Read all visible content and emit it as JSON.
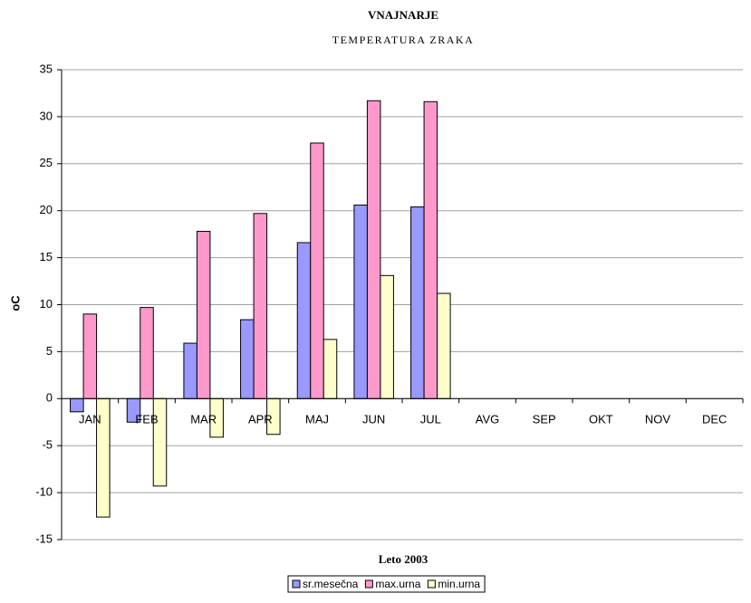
{
  "chart_data": {
    "type": "bar",
    "title": "VNAJNARJE",
    "subtitle": "TEMPERATURA ZRAKA",
    "x_label": "Leto 2003",
    "y_label": "oC",
    "categories": [
      "JAN",
      "FEB",
      "MAR",
      "APR",
      "MAJ",
      "JUN",
      "JUL",
      "AVG",
      "SEP",
      "OKT",
      "NOV",
      "DEC"
    ],
    "series": [
      {
        "name": "sr.mesečna",
        "color": "#9999ff",
        "values": [
          -1.4,
          -2.5,
          5.9,
          8.4,
          16.6,
          20.6,
          20.4,
          null,
          null,
          null,
          null,
          null
        ]
      },
      {
        "name": "max.urna",
        "color": "#ff99cc",
        "values": [
          9.0,
          9.7,
          17.8,
          19.7,
          27.2,
          31.7,
          31.6,
          null,
          null,
          null,
          null,
          null
        ]
      },
      {
        "name": "min.urna",
        "color": "#ffffcc",
        "values": [
          -12.6,
          -9.3,
          -4.1,
          -3.8,
          6.3,
          13.1,
          11.2,
          null,
          null,
          null,
          null,
          null
        ]
      }
    ],
    "ylim": [
      -15,
      35
    ],
    "yticks": [
      -15,
      -10,
      -5,
      0,
      5,
      10,
      15,
      20,
      25,
      30,
      35
    ],
    "grid": true,
    "legend": "bottom"
  }
}
